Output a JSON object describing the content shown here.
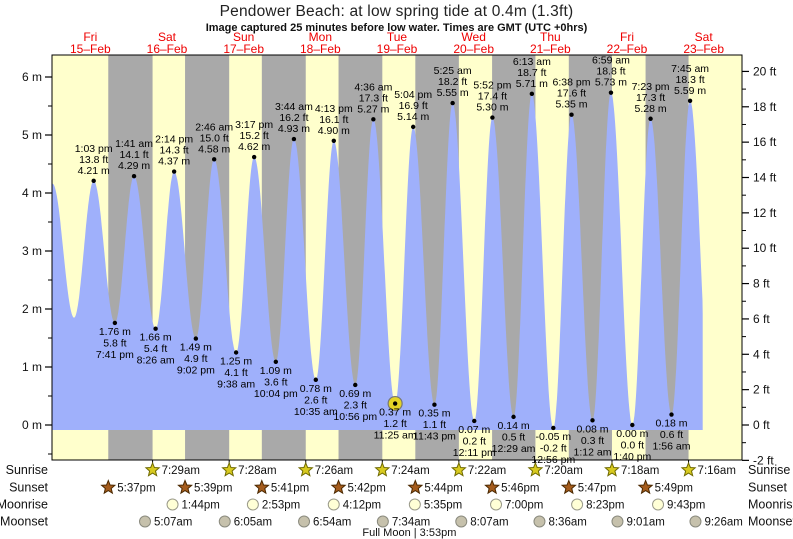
{
  "header": {
    "title": "Pendower Beach: at low spring tide at 0.4m (1.3ft)",
    "subtitle": "Image captured 25 minutes before low water. Times are GMT (UTC +0hrs)"
  },
  "chart_data": {
    "type": "area",
    "title": "Pendower Beach: at low spring tide at 0.4m (1.3ft)",
    "subtitle": "Image captured 25 minutes before low water. Times are GMT (UTC +0hrs)",
    "days": [
      {
        "name": "Fri",
        "date": "15–Feb"
      },
      {
        "name": "Sat",
        "date": "16–Feb"
      },
      {
        "name": "Sun",
        "date": "17–Feb"
      },
      {
        "name": "Mon",
        "date": "18–Feb"
      },
      {
        "name": "Tue",
        "date": "19–Feb"
      },
      {
        "name": "Wed",
        "date": "20–Feb"
      },
      {
        "name": "Thu",
        "date": "21–Feb"
      },
      {
        "name": "Fri",
        "date": "22–Feb"
      },
      {
        "name": "Sat",
        "date": "23–Feb"
      }
    ],
    "y_axis_left": {
      "unit": "m",
      "min": 0,
      "max": 6,
      "tick_step": 1,
      "labels": [
        "0 m",
        "1 m",
        "2 m",
        "3 m",
        "4 m",
        "5 m",
        "6 m"
      ]
    },
    "y_axis_right": {
      "unit": "ft",
      "min": -2,
      "max": 20,
      "tick_step": 2,
      "labels": [
        "-2 ft",
        "0 ft",
        "2 ft",
        "4 ft",
        "6 ft",
        "8 ft",
        "10 ft",
        "12 ft",
        "14 ft",
        "16 ft",
        "18 ft",
        "20 ft"
      ]
    },
    "tide_events": [
      {
        "type": "high",
        "day": 0,
        "hour": 13.05,
        "height_m": 4.21,
        "lines": [
          "1:03 pm",
          "13.8 ft",
          "4.21 m"
        ]
      },
      {
        "type": "low",
        "day": 0,
        "hour": 19.683,
        "height_m": 1.76,
        "lines": [
          "1.76 m",
          "5.8 ft",
          "7:41 pm"
        ]
      },
      {
        "type": "high",
        "day": 1,
        "hour": 1.683,
        "height_m": 4.29,
        "lines": [
          "1:41 am",
          "14.1 ft",
          "4.29 m"
        ]
      },
      {
        "type": "low",
        "day": 1,
        "hour": 8.433,
        "height_m": 1.66,
        "lines": [
          "1.66 m",
          "5.4 ft",
          "8:26 am"
        ]
      },
      {
        "type": "high",
        "day": 1,
        "hour": 14.233,
        "height_m": 4.37,
        "lines": [
          "2:14 pm",
          "14.3 ft",
          "4.37 m"
        ]
      },
      {
        "type": "low",
        "day": 1,
        "hour": 21.033,
        "height_m": 1.49,
        "lines": [
          "1.49 m",
          "4.9 ft",
          "9:02 pm"
        ]
      },
      {
        "type": "high",
        "day": 2,
        "hour": 2.767,
        "height_m": 4.58,
        "lines": [
          "2:46 am",
          "15.0 ft",
          "4.58 m"
        ]
      },
      {
        "type": "low",
        "day": 2,
        "hour": 9.633,
        "height_m": 1.25,
        "lines": [
          "1.25 m",
          "4.1 ft",
          "9:38 am"
        ]
      },
      {
        "type": "high",
        "day": 2,
        "hour": 15.283,
        "height_m": 4.62,
        "lines": [
          "3:17 pm",
          "15.2 ft",
          "4.62 m"
        ]
      },
      {
        "type": "low",
        "day": 2,
        "hour": 22.067,
        "height_m": 1.09,
        "lines": [
          "1.09 m",
          "3.6 ft",
          "10:04 pm"
        ]
      },
      {
        "type": "high",
        "day": 3,
        "hour": 3.733,
        "height_m": 4.93,
        "lines": [
          "3:44 am",
          "16.2 ft",
          "4.93 m"
        ]
      },
      {
        "type": "low",
        "day": 3,
        "hour": 10.583,
        "height_m": 0.78,
        "lines": [
          "0.78 m",
          "2.6 ft",
          "10:35 am"
        ]
      },
      {
        "type": "high",
        "day": 3,
        "hour": 16.217,
        "height_m": 4.9,
        "lines": [
          "4:13 pm",
          "16.1 ft",
          "4.90 m"
        ]
      },
      {
        "type": "low",
        "day": 3,
        "hour": 22.933,
        "height_m": 0.69,
        "lines": [
          "0.69 m",
          "2.3 ft",
          "10:56 pm"
        ]
      },
      {
        "type": "high",
        "day": 4,
        "hour": 4.6,
        "height_m": 5.27,
        "lines": [
          "4:36 am",
          "17.3 ft",
          "5.27 m"
        ]
      },
      {
        "type": "low",
        "day": 4,
        "hour": 11.417,
        "height_m": 0.37,
        "now": true,
        "lines": [
          "0.37 m",
          "1.2 ft",
          "11:25 am"
        ]
      },
      {
        "type": "high",
        "day": 4,
        "hour": 17.067,
        "height_m": 5.14,
        "lines": [
          "5:04 pm",
          "16.9 ft",
          "5.14 m"
        ]
      },
      {
        "type": "low",
        "day": 4,
        "hour": 23.717,
        "height_m": 0.35,
        "lines": [
          "0.35 m",
          "1.1 ft",
          "11:43 pm"
        ]
      },
      {
        "type": "high",
        "day": 5,
        "hour": 5.417,
        "height_m": 5.55,
        "lines": [
          "5:25 am",
          "18.2 ft",
          "5.55 m"
        ]
      },
      {
        "type": "low",
        "day": 5,
        "hour": 12.183,
        "height_m": 0.07,
        "lines": [
          "0.07 m",
          "0.2 ft",
          "12:11 pm"
        ]
      },
      {
        "type": "high",
        "day": 5,
        "hour": 17.867,
        "height_m": 5.3,
        "lines": [
          "5:52 pm",
          "17.4 ft",
          "5.30 m"
        ]
      },
      {
        "type": "low",
        "day": 6,
        "hour": 0.483,
        "height_m": 0.14,
        "lines": [
          "0.14 m",
          "0.5 ft",
          "12:29 am"
        ]
      },
      {
        "type": "high",
        "day": 6,
        "hour": 6.217,
        "height_m": 5.71,
        "lines": [
          "6:13 am",
          "18.7 ft",
          "5.71 m"
        ]
      },
      {
        "type": "low",
        "day": 6,
        "hour": 12.933,
        "height_m": -0.05,
        "lines": [
          "-0.05 m",
          "-0.2 ft",
          "12:56 pm"
        ]
      },
      {
        "type": "high",
        "day": 6,
        "hour": 18.633,
        "height_m": 5.35,
        "lines": [
          "6:38 pm",
          "17.6 ft",
          "5.35 m"
        ]
      },
      {
        "type": "low",
        "day": 7,
        "hour": 1.2,
        "height_m": 0.08,
        "lines": [
          "0.08 m",
          "0.3 ft",
          "1:12 am"
        ]
      },
      {
        "type": "high",
        "day": 7,
        "hour": 6.983,
        "height_m": 5.73,
        "lines": [
          "6:59 am",
          "18.8 ft",
          "5.73 m"
        ]
      },
      {
        "type": "low",
        "day": 7,
        "hour": 13.667,
        "height_m": 0.0,
        "lines": [
          "0.00 m",
          "0.0 ft",
          "1:40 pm"
        ]
      },
      {
        "type": "high",
        "day": 7,
        "hour": 19.383,
        "height_m": 5.28,
        "lines": [
          "7:23 pm",
          "17.3 ft",
          "5.28 m"
        ]
      },
      {
        "type": "low",
        "day": 8,
        "hour": 1.933,
        "height_m": 0.18,
        "lines": [
          "0.18 m",
          "0.6 ft",
          "1:56 am"
        ]
      },
      {
        "type": "high",
        "day": 8,
        "hour": 7.75,
        "height_m": 5.59,
        "lines": [
          "7:45 am",
          "18.3 ft",
          "5.59 m"
        ]
      }
    ],
    "astro": {
      "rows": [
        {
          "id": "sunrise",
          "label": "Sunrise",
          "icon": "sunrise-star",
          "events": [
            {
              "day": 1,
              "hour": 7.483,
              "time": "7:29am"
            },
            {
              "day": 2,
              "hour": 7.467,
              "time": "7:28am"
            },
            {
              "day": 3,
              "hour": 7.433,
              "time": "7:26am"
            },
            {
              "day": 4,
              "hour": 7.4,
              "time": "7:24am"
            },
            {
              "day": 5,
              "hour": 7.367,
              "time": "7:22am"
            },
            {
              "day": 6,
              "hour": 7.333,
              "time": "7:20am"
            },
            {
              "day": 7,
              "hour": 7.3,
              "time": "7:18am"
            },
            {
              "day": 8,
              "hour": 7.267,
              "time": "7:16am"
            }
          ]
        },
        {
          "id": "sunset",
          "label": "Sunset",
          "icon": "sunset-star",
          "events": [
            {
              "day": 0,
              "hour": 17.617,
              "time": "5:37pm"
            },
            {
              "day": 1,
              "hour": 17.65,
              "time": "5:39pm"
            },
            {
              "day": 2,
              "hour": 17.683,
              "time": "5:41pm"
            },
            {
              "day": 3,
              "hour": 17.7,
              "time": "5:42pm"
            },
            {
              "day": 4,
              "hour": 17.733,
              "time": "5:44pm"
            },
            {
              "day": 5,
              "hour": 17.767,
              "time": "5:46pm"
            },
            {
              "day": 6,
              "hour": 17.783,
              "time": "5:47pm"
            },
            {
              "day": 7,
              "hour": 17.817,
              "time": "5:49pm"
            }
          ]
        },
        {
          "id": "moonrise",
          "label": "Moonrise",
          "icon": "moonrise-circle",
          "events": [
            {
              "day": 1,
              "hour": 13.733,
              "time": "1:44pm"
            },
            {
              "day": 2,
              "hour": 14.883,
              "time": "2:53pm"
            },
            {
              "day": 3,
              "hour": 16.2,
              "time": "4:12pm"
            },
            {
              "day": 4,
              "hour": 17.583,
              "time": "5:35pm"
            },
            {
              "day": 5,
              "hour": 19.0,
              "time": "7:00pm"
            },
            {
              "day": 6,
              "hour": 20.383,
              "time": "8:23pm"
            },
            {
              "day": 7,
              "hour": 21.717,
              "time": "9:43pm"
            }
          ]
        },
        {
          "id": "moonset",
          "label": "Moonset",
          "icon": "moonset-circle",
          "events": [
            {
              "day": 1,
              "hour": 5.117,
              "time": "5:07am"
            },
            {
              "day": 2,
              "hour": 6.083,
              "time": "6:05am"
            },
            {
              "day": 3,
              "hour": 6.9,
              "time": "6:54am"
            },
            {
              "day": 4,
              "hour": 7.567,
              "time": "7:34am"
            },
            {
              "day": 5,
              "hour": 8.117,
              "time": "8:07am"
            },
            {
              "day": 6,
              "hour": 8.6,
              "time": "8:36am"
            },
            {
              "day": 7,
              "hour": 9.017,
              "time": "9:01am"
            },
            {
              "day": 8,
              "hour": 9.433,
              "time": "9:26am"
            }
          ]
        }
      ],
      "moon_phase": {
        "label": "Full Moon",
        "time": "3:53pm",
        "day": 4,
        "hour": 15.883,
        "separator": "|"
      }
    },
    "colors": {
      "day_band": "#ffffcc",
      "night_band": "#a9a9a9",
      "tide_fill": "#9fb0fb",
      "label_red": "#ee0000",
      "annotation_text": "#000000",
      "axis_text": "#111111",
      "frame": "#000000",
      "sunrise_star": "#d8ca1f",
      "sunrise_star_stroke": "#6f6a00",
      "sunset_star": "#a55c1d",
      "sunset_star_stroke": "#4a2800",
      "moonrise_fill": "#ffffd6",
      "moonrise_stroke": "#9a9a8a",
      "moonset_fill": "#c6c1ac",
      "moonset_stroke": "#8a8a7e",
      "now_marker_fill": "#e3d326",
      "now_marker_stroke": "#777777",
      "extreme_dot": "#000000"
    },
    "layout_hints": {
      "grid": false,
      "legend": false,
      "x_range_days": 9
    }
  }
}
